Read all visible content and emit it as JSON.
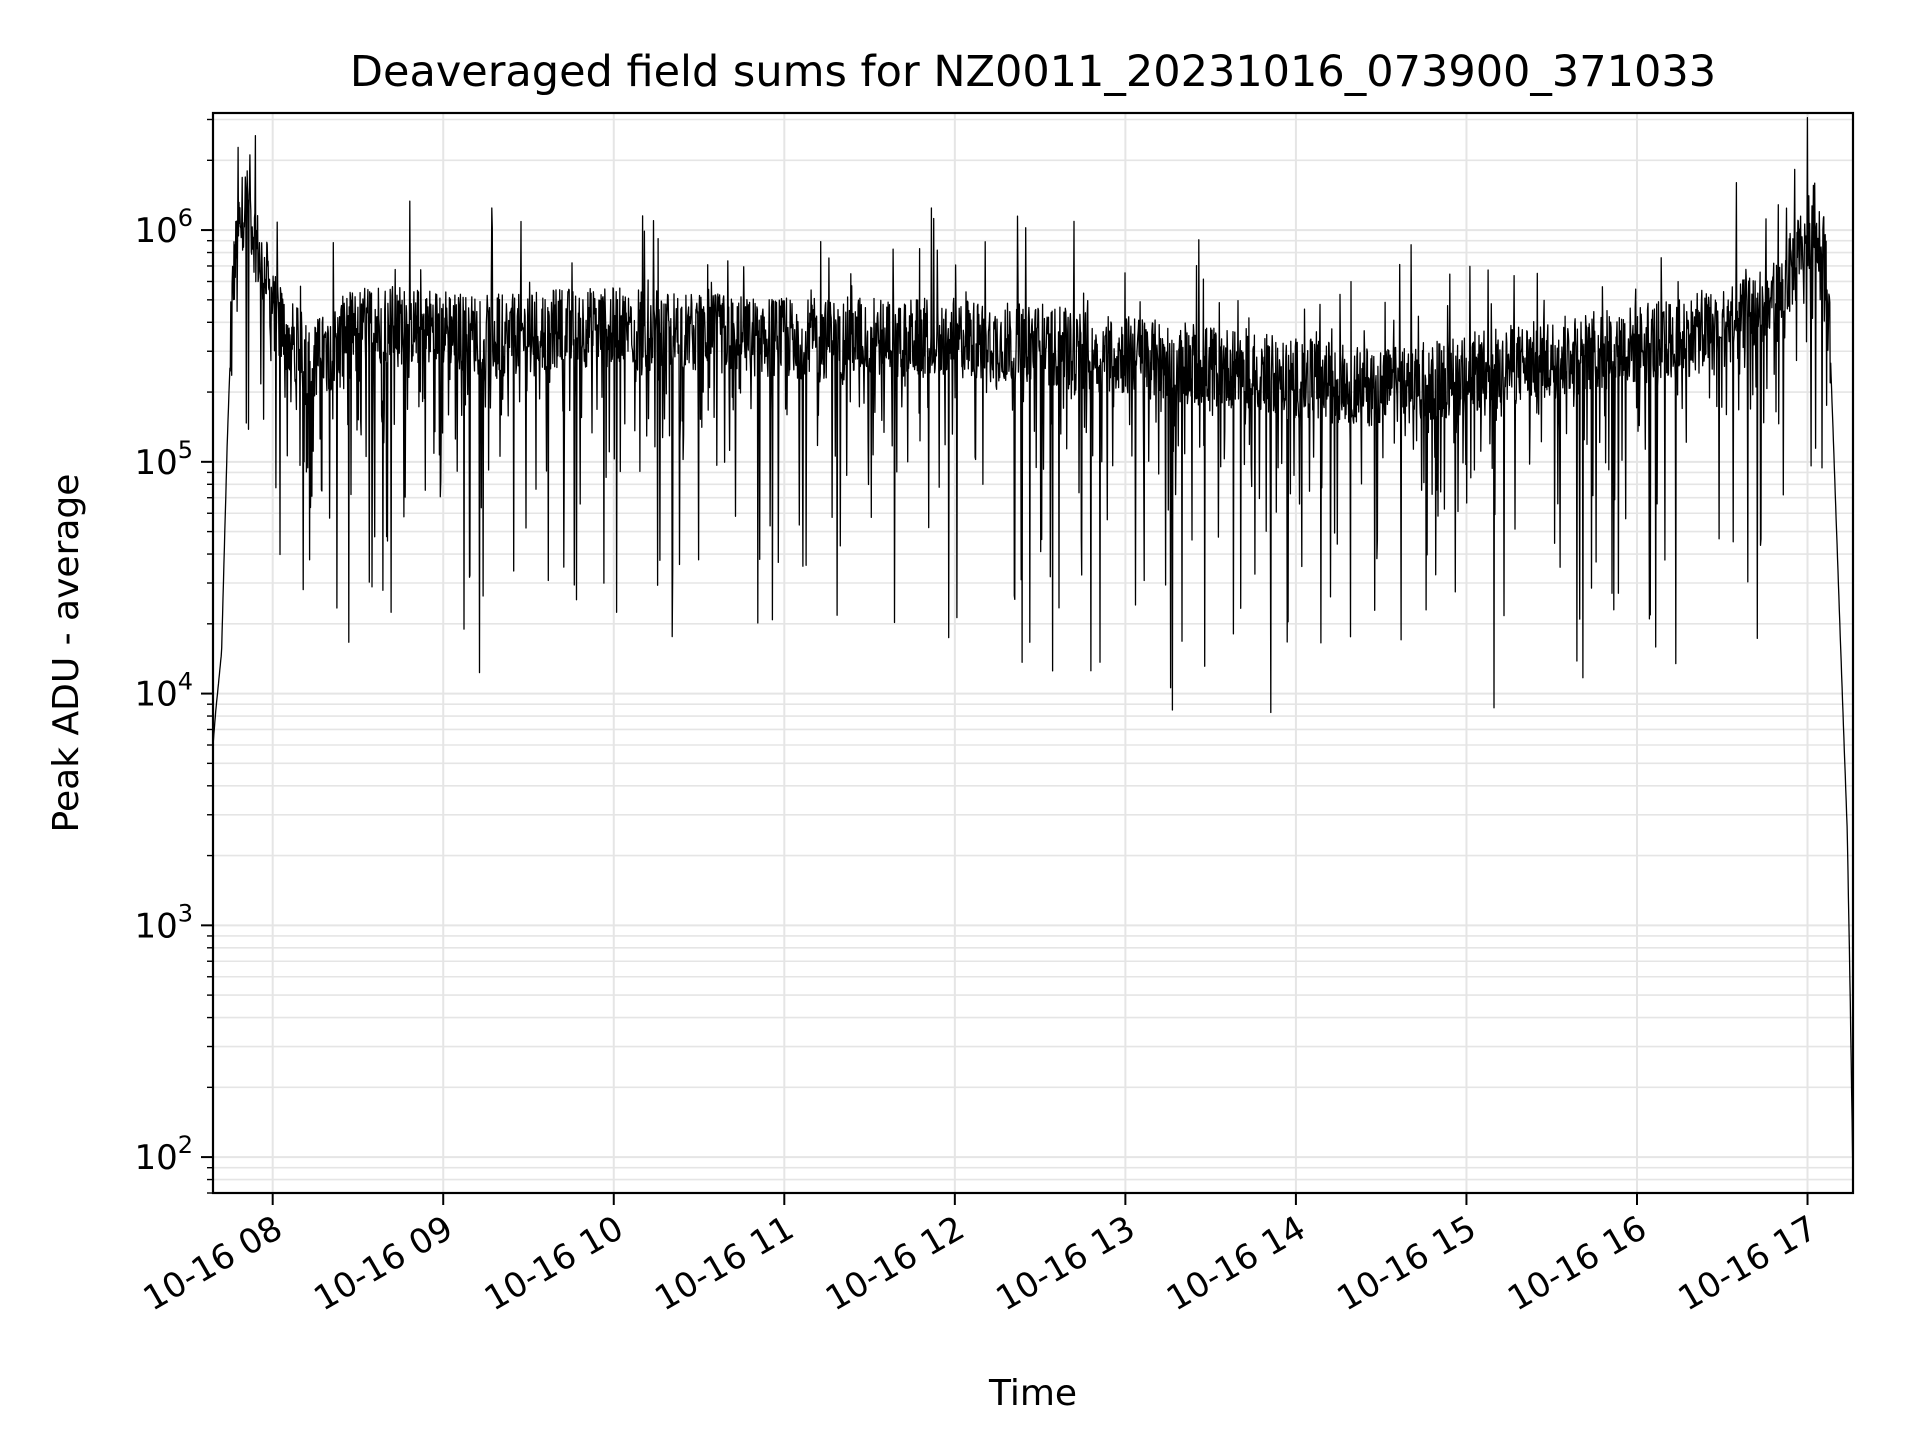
{
  "chart_data": {
    "type": "line",
    "title": "Deaveraged field sums for NZ0011_20231016_073900_371033",
    "xlabel": "Time",
    "ylabel": "Peak ADU - average",
    "yscale": "log",
    "ylim": [
      70,
      3200000
    ],
    "xlim": [
      "2023-10-16 07:39",
      "2023-10-16 17:16"
    ],
    "grid": true,
    "line_color": "#000000",
    "grid_color": "#e5e5e5",
    "x_ticks": [
      {
        "label": "10-16 08",
        "value": "2023-10-16 08:00"
      },
      {
        "label": "10-16 09",
        "value": "2023-10-16 09:00"
      },
      {
        "label": "10-16 10",
        "value": "2023-10-16 10:00"
      },
      {
        "label": "10-16 11",
        "value": "2023-10-16 11:00"
      },
      {
        "label": "10-16 12",
        "value": "2023-10-16 12:00"
      },
      {
        "label": "10-16 13",
        "value": "2023-10-16 13:00"
      },
      {
        "label": "10-16 14",
        "value": "2023-10-16 14:00"
      },
      {
        "label": "10-16 15",
        "value": "2023-10-16 15:00"
      },
      {
        "label": "10-16 16",
        "value": "2023-10-16 16:00"
      },
      {
        "label": "10-16 17",
        "value": "2023-10-16 17:00"
      }
    ],
    "y_ticks": [
      {
        "base": "10",
        "exp": "2",
        "value": 100
      },
      {
        "base": "10",
        "exp": "3",
        "value": 1000
      },
      {
        "base": "10",
        "exp": "4",
        "value": 10000
      },
      {
        "base": "10",
        "exp": "5",
        "value": 100000
      },
      {
        "base": "10",
        "exp": "6",
        "value": 1000000
      }
    ],
    "series": [
      {
        "x": [
          "2023-10-16 07:39",
          "2023-10-16 07:40",
          "2023-10-16 07:42",
          "2023-10-16 07:44",
          "2023-10-16 07:46",
          "2023-10-16 07:48",
          "2023-10-16 07:50",
          "2023-10-16 07:52",
          "2023-10-16 07:54",
          "2023-10-16 07:56",
          "2023-10-16 07:58",
          "2023-10-16 08:00",
          "2023-10-16 08:05",
          "2023-10-16 08:10",
          "2023-10-16 08:15",
          "2023-10-16 08:20",
          "2023-10-16 08:25",
          "2023-10-16 08:30",
          "2023-10-16 08:40",
          "2023-10-16 08:50",
          "2023-10-16 09:00",
          "2023-10-16 09:10",
          "2023-10-16 09:20",
          "2023-10-16 09:30",
          "2023-10-16 09:40",
          "2023-10-16 09:50",
          "2023-10-16 10:00",
          "2023-10-16 10:15",
          "2023-10-16 10:30",
          "2023-10-16 10:45",
          "2023-10-16 11:00",
          "2023-10-16 11:15",
          "2023-10-16 11:30",
          "2023-10-16 11:45",
          "2023-10-16 12:00",
          "2023-10-16 12:15",
          "2023-10-16 12:30",
          "2023-10-16 12:45",
          "2023-10-16 13:00",
          "2023-10-16 13:15",
          "2023-10-16 13:30",
          "2023-10-16 13:45",
          "2023-10-16 14:00",
          "2023-10-16 14:15",
          "2023-10-16 14:30",
          "2023-10-16 14:45",
          "2023-10-16 15:00",
          "2023-10-16 15:15",
          "2023-10-16 15:30",
          "2023-10-16 15:45",
          "2023-10-16 16:00",
          "2023-10-16 16:15",
          "2023-10-16 16:30",
          "2023-10-16 16:40",
          "2023-10-16 16:50",
          "2023-10-16 16:55",
          "2023-10-16 17:00",
          "2023-10-16 17:03",
          "2023-10-16 17:06",
          "2023-10-16 17:08",
          "2023-10-16 17:10",
          "2023-10-16 17:12",
          "2023-10-16 17:14",
          "2023-10-16 17:15",
          "2023-10-16 17:16"
        ],
        "y": [
          6000,
          8500,
          15000,
          120000,
          600000,
          1000000,
          1300000,
          1200000,
          900000,
          700000,
          600000,
          450000,
          350000,
          300000,
          280000,
          300000,
          350000,
          380000,
          400000,
          380000,
          380000,
          360000,
          350000,
          360000,
          380000,
          380000,
          380000,
          370000,
          360000,
          350000,
          340000,
          340000,
          350000,
          340000,
          340000,
          330000,
          320000,
          300000,
          290000,
          270000,
          260000,
          250000,
          230000,
          220000,
          210000,
          220000,
          240000,
          260000,
          280000,
          300000,
          320000,
          340000,
          380000,
          420000,
          500000,
          700000,
          1000000,
          1100000,
          800000,
          300000,
          60000,
          12000,
          2500,
          500,
          80
        ],
        "low_envelope": [
          30000,
          20000,
          13000,
          16000,
          18000,
          30000,
          25000,
          40000
        ]
      }
    ]
  }
}
